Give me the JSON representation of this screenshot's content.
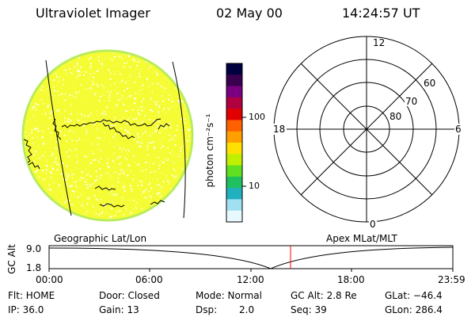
{
  "header": {
    "instrument": "Ultraviolet Imager",
    "date": "02 May 00",
    "time": "14:24:57 UT"
  },
  "colorbar": {
    "label": "photon cm⁻²s⁻¹",
    "ticks": [
      "100",
      "10"
    ],
    "colors": [
      "#000040",
      "#3a0050",
      "#7a0080",
      "#b00040",
      "#e00000",
      "#ff6000",
      "#ffa000",
      "#ffe000",
      "#c0f000",
      "#60e020",
      "#20c060",
      "#20b0c0",
      "#a0e0f0",
      "#e8f8ff"
    ]
  },
  "globe": {
    "background": "#f5fc33",
    "speckle": "#ffffff",
    "rim": "#b9ec5c",
    "projection_label": "Geographic Lat/Lon"
  },
  "polar_plot": {
    "lat_labels": [
      "60",
      "70",
      "80"
    ],
    "mlt_labels": [
      "12",
      "18",
      "6",
      "0"
    ],
    "projection_label": "Apex MLat/MLT"
  },
  "altitude_plot": {
    "axis_label": "GC Alt",
    "y_ticks": [
      "9.0",
      "1.8"
    ],
    "x_ticks": [
      "00:00",
      "06:00",
      "12:00",
      "18:00",
      "23:59"
    ],
    "marker_color": "#ff0000"
  },
  "status": {
    "flt": "Flt: HOME",
    "ip": "IP: 36.0",
    "door": "Door: Closed",
    "gain": "Gain: 13",
    "mode": "Mode: Normal",
    "dsp_label": "Dsp:",
    "dsp_value": "2.0",
    "gc_alt": "GC Alt: 2.8 Re",
    "seq": "Seq: 39",
    "glat": "GLat: −46.4",
    "glon": "GLon: 286.4"
  }
}
